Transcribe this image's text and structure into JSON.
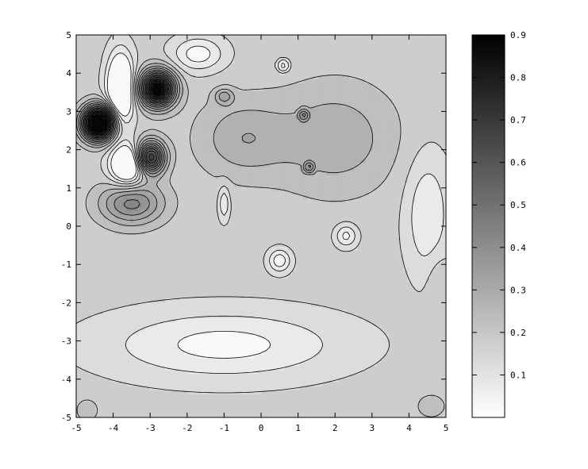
{
  "chart_data": {
    "type": "heatmap",
    "subtype": "filled-contour",
    "title": "",
    "xlabel": "",
    "ylabel": "",
    "xlim": [
      -5,
      5
    ],
    "ylim": [
      -5,
      5
    ],
    "x_ticks": [
      -5,
      -4,
      -3,
      -2,
      -1,
      0,
      1,
      2,
      3,
      4,
      5
    ],
    "y_ticks": [
      -5,
      -4,
      -3,
      -2,
      -1,
      0,
      1,
      2,
      3,
      4,
      5
    ],
    "x_tick_labels": [
      "-5",
      "-4",
      "-3",
      "-2",
      "-1",
      "0",
      "1",
      "2",
      "3",
      "4",
      "5"
    ],
    "y_tick_labels": [
      "-5",
      "-4",
      "-3",
      "-2",
      "-1",
      "0",
      "1",
      "2",
      "3",
      "4",
      "5"
    ],
    "colorbar": {
      "range": [
        0,
        0.9
      ],
      "ticks": [
        0.1,
        0.2,
        0.3,
        0.4,
        0.5,
        0.6,
        0.7,
        0.8,
        0.9
      ],
      "tick_labels": [
        "0.1",
        "0.2",
        "0.3",
        "0.4",
        "0.5",
        "0.6",
        "0.7",
        "0.8",
        "0.9"
      ],
      "colormap": "grayscale-reversed",
      "low_color": "#ffffff",
      "high_color": "#000000"
    },
    "contour_levels": [
      0.05,
      0.1,
      0.15,
      0.2,
      0.25,
      0.3,
      0.35,
      0.4,
      0.45,
      0.5,
      0.55,
      0.6,
      0.65,
      0.7,
      0.75,
      0.8,
      0.85
    ],
    "field": {
      "base": 0.17,
      "terms": [
        {
          "cx": -4.4,
          "cy": 2.7,
          "amp": 0.92,
          "sx": 0.42,
          "sy": 0.42
        },
        {
          "cx": -2.8,
          "cy": 3.6,
          "amp": 0.75,
          "sx": 0.45,
          "sy": 0.45
        },
        {
          "cx": -3.0,
          "cy": 1.8,
          "amp": 0.55,
          "sx": 0.38,
          "sy": 0.42
        },
        {
          "cx": -3.5,
          "cy": 0.6,
          "amp": 0.25,
          "sx": 0.85,
          "sy": 0.55
        },
        {
          "cx": -0.5,
          "cy": 2.3,
          "amp": 0.12,
          "sx": 1.2,
          "sy": 1.0
        },
        {
          "cx": 2.0,
          "cy": 2.3,
          "amp": 0.12,
          "sx": 1.6,
          "sy": 1.4
        },
        {
          "cx": -1.0,
          "cy": 3.4,
          "amp": 0.14,
          "sx": 0.25,
          "sy": 0.2
        },
        {
          "cx": -3.8,
          "cy": 3.6,
          "amp": -0.35,
          "sx": 0.35,
          "sy": 0.9
        },
        {
          "cx": -3.6,
          "cy": 1.6,
          "amp": -0.35,
          "sx": 0.45,
          "sy": 0.5
        },
        {
          "cx": -1.7,
          "cy": 4.5,
          "amp": -0.15,
          "sx": 0.7,
          "sy": 0.45
        },
        {
          "cx": -1.0,
          "cy": 0.6,
          "amp": -0.12,
          "sx": 0.15,
          "sy": 0.45
        },
        {
          "cx": 0.5,
          "cy": -0.9,
          "amp": -0.16,
          "sx": 0.3,
          "sy": 0.3
        },
        {
          "cx": 2.3,
          "cy": -0.25,
          "amp": -0.14,
          "sx": 0.3,
          "sy": 0.3
        },
        {
          "cx": 0.6,
          "cy": 4.2,
          "amp": -0.07,
          "sx": 0.2,
          "sy": 0.2
        },
        {
          "cx": -1.0,
          "cy": -3.1,
          "amp": -0.14,
          "sx": 3.2,
          "sy": 0.9
        },
        {
          "cx": 4.5,
          "cy": 0.3,
          "amp": -0.12,
          "sx": 0.6,
          "sy": 1.6
        },
        {
          "cx": -4.7,
          "cy": -4.8,
          "amp": 0.05,
          "sx": 0.4,
          "sy": 0.4
        },
        {
          "cx": 4.6,
          "cy": -4.7,
          "amp": 0.05,
          "sx": 0.5,
          "sy": 0.4
        },
        {
          "cx": 4.8,
          "cy": -1.5,
          "amp": 0.05,
          "sx": 0.3,
          "sy": 0.8
        }
      ]
    },
    "spikes": [
      {
        "x": 0.6,
        "y": 4.2,
        "peak": 0.02
      },
      {
        "x": 1.15,
        "y": 2.9,
        "peak": 0.45
      },
      {
        "x": 1.3,
        "y": 1.55,
        "peak": 0.45
      }
    ]
  }
}
